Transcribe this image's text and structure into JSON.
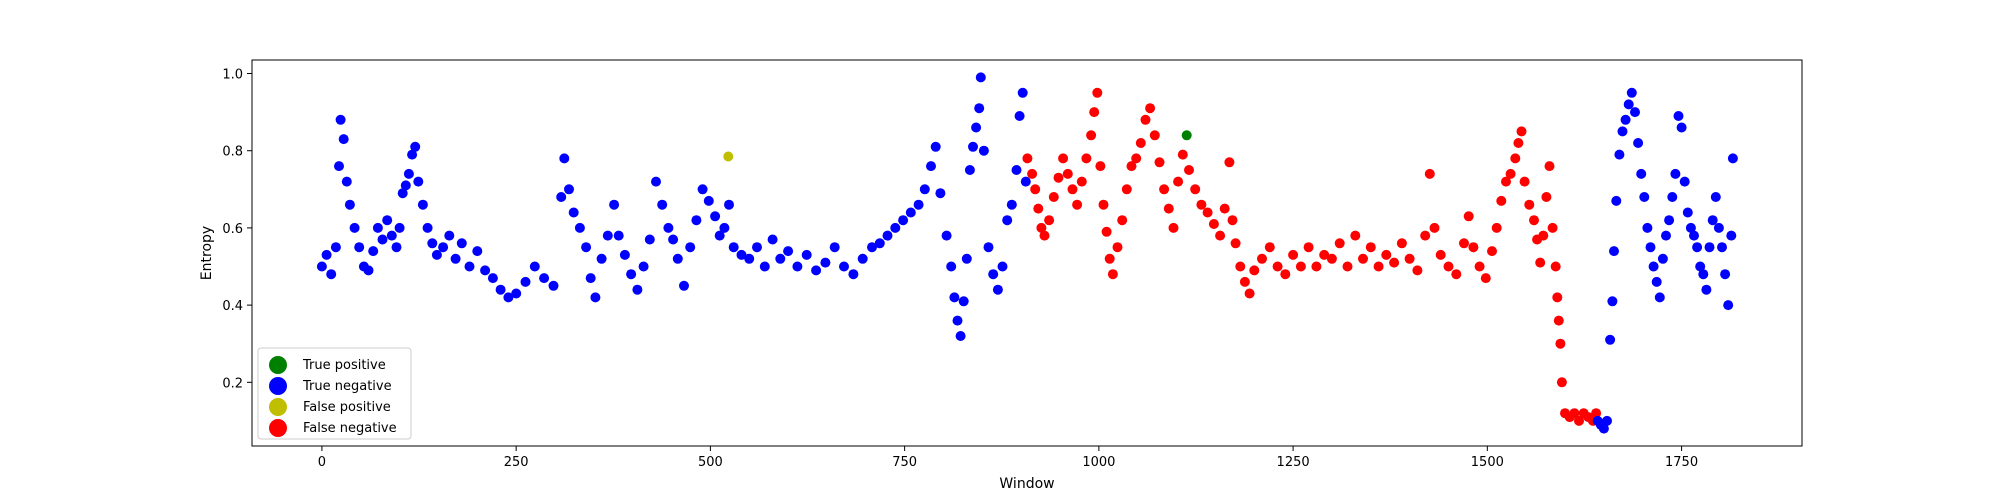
{
  "chart_data": {
    "type": "scatter",
    "title": "",
    "xlabel": "Window",
    "ylabel": "Entropy",
    "xlim": [
      -90,
      1905
    ],
    "ylim": [
      0.035,
      1.035
    ],
    "xticks": [
      0,
      250,
      500,
      750,
      1000,
      1250,
      1500,
      1750
    ],
    "xtick_labels": [
      "0",
      "250",
      "500",
      "750",
      "1000",
      "1250",
      "1500",
      "1750"
    ],
    "yticks": [
      0.2,
      0.4,
      0.6,
      0.8,
      1.0
    ],
    "ytick_labels": [
      "0.2",
      "0.4",
      "0.6",
      "0.8",
      "1.0"
    ],
    "grid": false,
    "legend_position": "lower-left",
    "series": [
      {
        "name": "True positive",
        "color": "#008000",
        "points": [
          [
            1113,
            0.84
          ]
        ]
      },
      {
        "name": "True negative",
        "color": "#0000ff",
        "points": [
          [
            0,
            0.5
          ],
          [
            6,
            0.53
          ],
          [
            12,
            0.48
          ],
          [
            18,
            0.55
          ],
          [
            22,
            0.76
          ],
          [
            24,
            0.88
          ],
          [
            28,
            0.83
          ],
          [
            32,
            0.72
          ],
          [
            36,
            0.66
          ],
          [
            42,
            0.6
          ],
          [
            48,
            0.55
          ],
          [
            54,
            0.5
          ],
          [
            60,
            0.49
          ],
          [
            66,
            0.54
          ],
          [
            72,
            0.6
          ],
          [
            78,
            0.57
          ],
          [
            84,
            0.62
          ],
          [
            90,
            0.58
          ],
          [
            96,
            0.55
          ],
          [
            100,
            0.6
          ],
          [
            104,
            0.69
          ],
          [
            108,
            0.71
          ],
          [
            112,
            0.74
          ],
          [
            116,
            0.79
          ],
          [
            120,
            0.81
          ],
          [
            124,
            0.72
          ],
          [
            130,
            0.66
          ],
          [
            136,
            0.6
          ],
          [
            142,
            0.56
          ],
          [
            148,
            0.53
          ],
          [
            156,
            0.55
          ],
          [
            164,
            0.58
          ],
          [
            172,
            0.52
          ],
          [
            180,
            0.56
          ],
          [
            190,
            0.5
          ],
          [
            200,
            0.54
          ],
          [
            210,
            0.49
          ],
          [
            220,
            0.47
          ],
          [
            230,
            0.44
          ],
          [
            240,
            0.42
          ],
          [
            250,
            0.43
          ],
          [
            262,
            0.46
          ],
          [
            274,
            0.5
          ],
          [
            286,
            0.47
          ],
          [
            298,
            0.45
          ],
          [
            308,
            0.68
          ],
          [
            312,
            0.78
          ],
          [
            318,
            0.7
          ],
          [
            324,
            0.64
          ],
          [
            332,
            0.6
          ],
          [
            340,
            0.55
          ],
          [
            346,
            0.47
          ],
          [
            352,
            0.42
          ],
          [
            360,
            0.52
          ],
          [
            368,
            0.58
          ],
          [
            376,
            0.66
          ],
          [
            382,
            0.58
          ],
          [
            390,
            0.53
          ],
          [
            398,
            0.48
          ],
          [
            406,
            0.44
          ],
          [
            414,
            0.5
          ],
          [
            422,
            0.57
          ],
          [
            430,
            0.72
          ],
          [
            438,
            0.66
          ],
          [
            446,
            0.6
          ],
          [
            452,
            0.57
          ],
          [
            458,
            0.52
          ],
          [
            466,
            0.45
          ],
          [
            474,
            0.55
          ],
          [
            482,
            0.62
          ],
          [
            490,
            0.7
          ],
          [
            498,
            0.67
          ],
          [
            506,
            0.63
          ],
          [
            512,
            0.58
          ],
          [
            518,
            0.6
          ],
          [
            524,
            0.66
          ],
          [
            530,
            0.55
          ],
          [
            540,
            0.53
          ],
          [
            550,
            0.52
          ],
          [
            560,
            0.55
          ],
          [
            570,
            0.5
          ],
          [
            580,
            0.57
          ],
          [
            590,
            0.52
          ],
          [
            600,
            0.54
          ],
          [
            612,
            0.5
          ],
          [
            624,
            0.53
          ],
          [
            636,
            0.49
          ],
          [
            648,
            0.51
          ],
          [
            660,
            0.55
          ],
          [
            672,
            0.5
          ],
          [
            684,
            0.48
          ],
          [
            696,
            0.52
          ],
          [
            708,
            0.55
          ],
          [
            718,
            0.56
          ],
          [
            728,
            0.58
          ],
          [
            738,
            0.6
          ],
          [
            748,
            0.62
          ],
          [
            758,
            0.64
          ],
          [
            768,
            0.66
          ],
          [
            776,
            0.7
          ],
          [
            784,
            0.76
          ],
          [
            790,
            0.81
          ],
          [
            796,
            0.69
          ],
          [
            804,
            0.58
          ],
          [
            810,
            0.5
          ],
          [
            814,
            0.42
          ],
          [
            818,
            0.36
          ],
          [
            822,
            0.32
          ],
          [
            826,
            0.41
          ],
          [
            830,
            0.52
          ],
          [
            834,
            0.75
          ],
          [
            838,
            0.81
          ],
          [
            842,
            0.86
          ],
          [
            846,
            0.91
          ],
          [
            848,
            0.99
          ],
          [
            852,
            0.8
          ],
          [
            858,
            0.55
          ],
          [
            864,
            0.48
          ],
          [
            870,
            0.44
          ],
          [
            876,
            0.5
          ],
          [
            882,
            0.62
          ],
          [
            888,
            0.66
          ],
          [
            894,
            0.75
          ],
          [
            898,
            0.89
          ],
          [
            902,
            0.95
          ],
          [
            906,
            0.72
          ]
        ]
      },
      {
        "name": "False positive",
        "color": "#bfbf00",
        "points": [
          [
            523,
            0.785
          ]
        ]
      },
      {
        "name": "False negative",
        "color": "#ff0000",
        "points": [
          [
            908,
            0.78
          ],
          [
            914,
            0.74
          ],
          [
            918,
            0.7
          ],
          [
            922,
            0.65
          ],
          [
            926,
            0.6
          ],
          [
            930,
            0.58
          ],
          [
            936,
            0.62
          ],
          [
            942,
            0.68
          ],
          [
            948,
            0.73
          ],
          [
            954,
            0.78
          ],
          [
            960,
            0.74
          ],
          [
            966,
            0.7
          ],
          [
            972,
            0.66
          ],
          [
            978,
            0.72
          ],
          [
            984,
            0.78
          ],
          [
            990,
            0.84
          ],
          [
            994,
            0.9
          ],
          [
            998,
            0.95
          ],
          [
            1002,
            0.76
          ],
          [
            1006,
            0.66
          ],
          [
            1010,
            0.59
          ],
          [
            1014,
            0.52
          ],
          [
            1018,
            0.48
          ],
          [
            1024,
            0.55
          ],
          [
            1030,
            0.62
          ],
          [
            1036,
            0.7
          ],
          [
            1042,
            0.76
          ],
          [
            1048,
            0.78
          ],
          [
            1054,
            0.82
          ],
          [
            1060,
            0.88
          ],
          [
            1066,
            0.91
          ],
          [
            1072,
            0.84
          ],
          [
            1078,
            0.77
          ],
          [
            1084,
            0.7
          ],
          [
            1090,
            0.65
          ],
          [
            1096,
            0.6
          ],
          [
            1102,
            0.72
          ],
          [
            1108,
            0.79
          ],
          [
            1116,
            0.75
          ],
          [
            1124,
            0.7
          ],
          [
            1132,
            0.66
          ],
          [
            1140,
            0.64
          ],
          [
            1148,
            0.61
          ],
          [
            1156,
            0.58
          ],
          [
            1162,
            0.65
          ],
          [
            1168,
            0.77
          ],
          [
            1172,
            0.62
          ],
          [
            1176,
            0.56
          ],
          [
            1182,
            0.5
          ],
          [
            1188,
            0.46
          ],
          [
            1194,
            0.43
          ],
          [
            1200,
            0.49
          ],
          [
            1210,
            0.52
          ],
          [
            1220,
            0.55
          ],
          [
            1230,
            0.5
          ],
          [
            1240,
            0.48
          ],
          [
            1250,
            0.53
          ],
          [
            1260,
            0.5
          ],
          [
            1270,
            0.55
          ],
          [
            1280,
            0.5
          ],
          [
            1290,
            0.53
          ],
          [
            1300,
            0.52
          ],
          [
            1310,
            0.56
          ],
          [
            1320,
            0.5
          ],
          [
            1330,
            0.58
          ],
          [
            1340,
            0.52
          ],
          [
            1350,
            0.55
          ],
          [
            1360,
            0.5
          ],
          [
            1370,
            0.53
          ],
          [
            1380,
            0.51
          ],
          [
            1390,
            0.56
          ],
          [
            1400,
            0.52
          ],
          [
            1410,
            0.49
          ],
          [
            1420,
            0.58
          ],
          [
            1426,
            0.74
          ],
          [
            1432,
            0.6
          ],
          [
            1440,
            0.53
          ],
          [
            1450,
            0.5
          ],
          [
            1460,
            0.48
          ],
          [
            1470,
            0.56
          ],
          [
            1476,
            0.63
          ],
          [
            1482,
            0.55
          ],
          [
            1490,
            0.5
          ],
          [
            1498,
            0.47
          ],
          [
            1506,
            0.54
          ],
          [
            1512,
            0.6
          ],
          [
            1518,
            0.67
          ],
          [
            1524,
            0.72
          ],
          [
            1530,
            0.74
          ],
          [
            1536,
            0.78
          ],
          [
            1540,
            0.82
          ],
          [
            1544,
            0.85
          ],
          [
            1548,
            0.72
          ],
          [
            1554,
            0.66
          ],
          [
            1560,
            0.62
          ],
          [
            1564,
            0.57
          ],
          [
            1568,
            0.51
          ],
          [
            1572,
            0.58
          ],
          [
            1576,
            0.68
          ],
          [
            1580,
            0.76
          ],
          [
            1584,
            0.6
          ],
          [
            1588,
            0.5
          ],
          [
            1590,
            0.42
          ],
          [
            1592,
            0.36
          ],
          [
            1594,
            0.3
          ],
          [
            1596,
            0.2
          ],
          [
            1600,
            0.12
          ],
          [
            1606,
            0.11
          ],
          [
            1612,
            0.12
          ],
          [
            1618,
            0.1
          ],
          [
            1624,
            0.12
          ],
          [
            1630,
            0.11
          ],
          [
            1636,
            0.1
          ],
          [
            1640,
            0.12
          ]
        ]
      },
      {
        "name": "True negative",
        "color": "#0000ff",
        "points": [
          [
            1642,
            0.1
          ],
          [
            1646,
            0.09
          ],
          [
            1650,
            0.08
          ],
          [
            1654,
            0.1
          ],
          [
            1658,
            0.31
          ],
          [
            1661,
            0.41
          ],
          [
            1663,
            0.54
          ],
          [
            1666,
            0.67
          ],
          [
            1670,
            0.79
          ],
          [
            1674,
            0.85
          ],
          [
            1678,
            0.88
          ],
          [
            1682,
            0.92
          ],
          [
            1686,
            0.95
          ],
          [
            1690,
            0.9
          ],
          [
            1694,
            0.82
          ],
          [
            1698,
            0.74
          ],
          [
            1702,
            0.68
          ],
          [
            1706,
            0.6
          ],
          [
            1710,
            0.55
          ],
          [
            1714,
            0.5
          ],
          [
            1718,
            0.46
          ],
          [
            1722,
            0.42
          ],
          [
            1726,
            0.52
          ],
          [
            1730,
            0.58
          ],
          [
            1734,
            0.62
          ],
          [
            1738,
            0.68
          ],
          [
            1742,
            0.74
          ],
          [
            1746,
            0.89
          ],
          [
            1750,
            0.86
          ],
          [
            1754,
            0.72
          ],
          [
            1758,
            0.64
          ],
          [
            1762,
            0.6
          ],
          [
            1766,
            0.58
          ],
          [
            1770,
            0.55
          ],
          [
            1774,
            0.5
          ],
          [
            1778,
            0.48
          ],
          [
            1782,
            0.44
          ],
          [
            1786,
            0.55
          ],
          [
            1790,
            0.62
          ],
          [
            1794,
            0.68
          ],
          [
            1798,
            0.6
          ],
          [
            1802,
            0.55
          ],
          [
            1806,
            0.48
          ],
          [
            1810,
            0.4
          ],
          [
            1814,
            0.58
          ],
          [
            1816,
            0.78
          ]
        ]
      }
    ]
  },
  "legend": {
    "items": [
      {
        "label": "True positive",
        "color": "#008000"
      },
      {
        "label": "True negative",
        "color": "#0000ff"
      },
      {
        "label": "False positive",
        "color": "#bfbf00"
      },
      {
        "label": "False negative",
        "color": "#ff0000"
      }
    ]
  }
}
